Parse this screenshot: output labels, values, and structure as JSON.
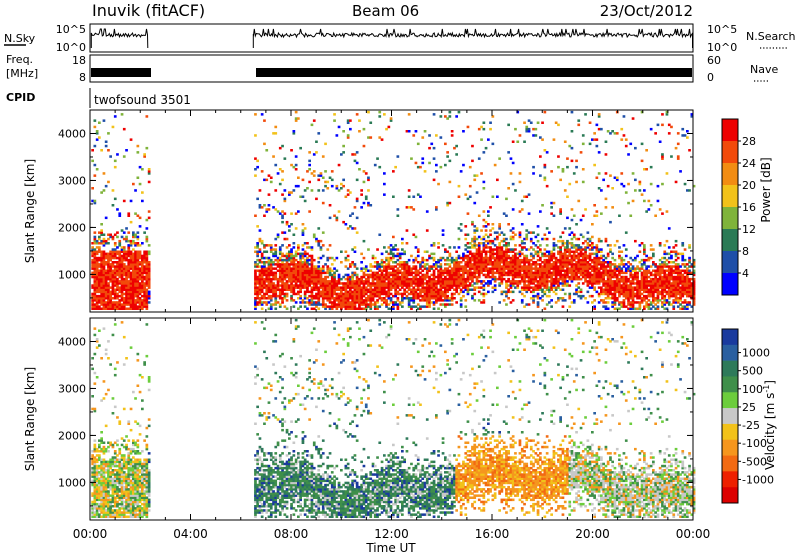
{
  "header": {
    "station": "Inuvik (fitACF)",
    "beam": "Beam 06",
    "date": "23/Oct/2012"
  },
  "top_panels": {
    "nsky_label": "N.Sky",
    "nsky_ticks": [
      "10^5",
      "10^0"
    ],
    "nsearch_label": "N.Search",
    "nsearch_ticks": [
      "10^5",
      "10^0"
    ],
    "freq_label": "Freq.",
    "freq_unit": "[MHz]",
    "freq_ticks": [
      "18",
      "8"
    ],
    "nave_label": "Nave",
    "nave_ticks": [
      "60",
      "0"
    ],
    "cpid_label": "CPID",
    "cpid_value": "twofsound 3501"
  },
  "colors": {
    "power_scale": [
      "#0000ff",
      "#1f4fa8",
      "#2a7a55",
      "#7fb33a",
      "#f2c21a",
      "#f28c12",
      "#f24a0a",
      "#ee0000"
    ],
    "velocity_scale": [
      "#1a3a9e",
      "#2a5fa0",
      "#2e7a5a",
      "#3f8f4a",
      "#6ccd3c",
      "#c8c8c8",
      "#f2c21a",
      "#f5961e",
      "#f26a12",
      "#ee2000",
      "#dd0000"
    ]
  },
  "chart_data": [
    {
      "type": "heatmap",
      "name": "power",
      "ylabel": "Slant Range [km]",
      "ylim": [
        200,
        4500
      ],
      "yticks": [
        "1000",
        "2000",
        "3000",
        "4000"
      ],
      "xlim_hours": [
        0,
        24
      ],
      "colorbar_label": "Power [dB]",
      "colorbar_ticks": [
        "4",
        "8",
        "12",
        "16",
        "20",
        "24",
        "28"
      ],
      "colorbar_range": [
        0,
        32
      ],
      "data_gaps_ut": [
        [
          "02:20",
          "06:30"
        ]
      ]
    },
    {
      "type": "heatmap",
      "name": "velocity",
      "ylabel": "Slant Range [km]",
      "ylim": [
        200,
        4500
      ],
      "yticks": [
        "1000",
        "2000",
        "3000",
        "4000"
      ],
      "xlim_hours": [
        0,
        24
      ],
      "colorbar_label": "Velocity [m s",
      "colorbar_label_sup": "-1",
      "colorbar_label_end": "]",
      "colorbar_ticks": [
        "1000",
        "500",
        "100",
        "25",
        "-25",
        "-100",
        "-500",
        "-1000"
      ],
      "data_gaps_ut": [
        [
          "02:20",
          "06:30"
        ]
      ]
    }
  ],
  "xaxis": {
    "label": "Time UT",
    "ticks": [
      "00:00",
      "04:00",
      "08:00",
      "12:00",
      "16:00",
      "20:00",
      "00:00"
    ]
  }
}
